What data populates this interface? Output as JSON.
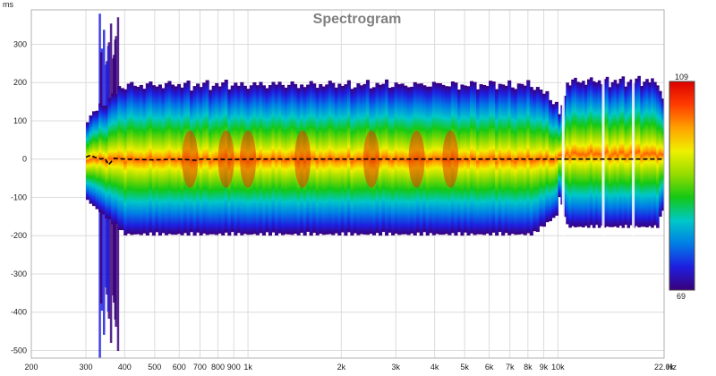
{
  "chart_data": {
    "type": "heatmap",
    "title": "Spectrogram",
    "x_unit_label": "Hz",
    "y_unit_label": "ms",
    "x_scale": "log",
    "xlim": [
      200,
      22000
    ],
    "ylim": [
      -520,
      390
    ],
    "x_ticks": [
      {
        "value": 200,
        "label": "200"
      },
      {
        "value": 300,
        "label": "300"
      },
      {
        "value": 400,
        "label": "400"
      },
      {
        "value": 500,
        "label": "500"
      },
      {
        "value": 600,
        "label": "600"
      },
      {
        "value": 700,
        "label": "700"
      },
      {
        "value": 800,
        "label": "800"
      },
      {
        "value": 900,
        "label": "900"
      },
      {
        "value": 1000,
        "label": "1k"
      },
      {
        "value": 2000,
        "label": "2k"
      },
      {
        "value": 3000,
        "label": "3k"
      },
      {
        "value": 4000,
        "label": "4k"
      },
      {
        "value": 5000,
        "label": "5k"
      },
      {
        "value": 6000,
        "label": "6k"
      },
      {
        "value": 7000,
        "label": "7k"
      },
      {
        "value": 8000,
        "label": "8k"
      },
      {
        "value": 9000,
        "label": "9k"
      },
      {
        "value": 10000,
        "label": "10k"
      },
      {
        "value": 22000,
        "label": "22.0k"
      }
    ],
    "y_ticks": [
      300,
      200,
      100,
      0,
      -100,
      -200,
      -300,
      -400,
      -500
    ],
    "grid": true,
    "colorbar": {
      "min": 69,
      "max": 109,
      "max_label": "109",
      "min_label": "69",
      "colors": [
        "#3a007a",
        "#1e1ee0",
        "#007de6",
        "#00c8c8",
        "#14c814",
        "#96dc00",
        "#f0f000",
        "#ffa000",
        "#ff3c00",
        "#dc0000"
      ]
    },
    "main_region": {
      "freq_start": 300,
      "freq_end": 10000,
      "time_start": -200,
      "time_end": 200
    },
    "upper_region": {
      "freq_start": 10000,
      "freq_end": 22000,
      "time_start": -180,
      "time_end": 210
    },
    "peak_frequencies": [
      650,
      850,
      1000,
      1500,
      2500,
      3500,
      4500
    ],
    "smearing_region": {
      "freq_start": 330,
      "freq_end": 380,
      "time_start": -520,
      "time_end": 380
    },
    "peak_energy_line": {
      "style": "dashed",
      "color": "#000000",
      "points": [
        [
          300,
          5
        ],
        [
          310,
          10
        ],
        [
          320,
          5
        ],
        [
          335,
          0
        ],
        [
          345,
          3
        ],
        [
          355,
          -15
        ],
        [
          370,
          2
        ],
        [
          400,
          0
        ],
        [
          500,
          -2
        ],
        [
          600,
          0
        ],
        [
          680,
          -3
        ],
        [
          700,
          0
        ],
        [
          900,
          -1
        ],
        [
          1000,
          0
        ],
        [
          2000,
          0
        ],
        [
          10000,
          0
        ],
        [
          22000,
          0
        ]
      ]
    }
  }
}
